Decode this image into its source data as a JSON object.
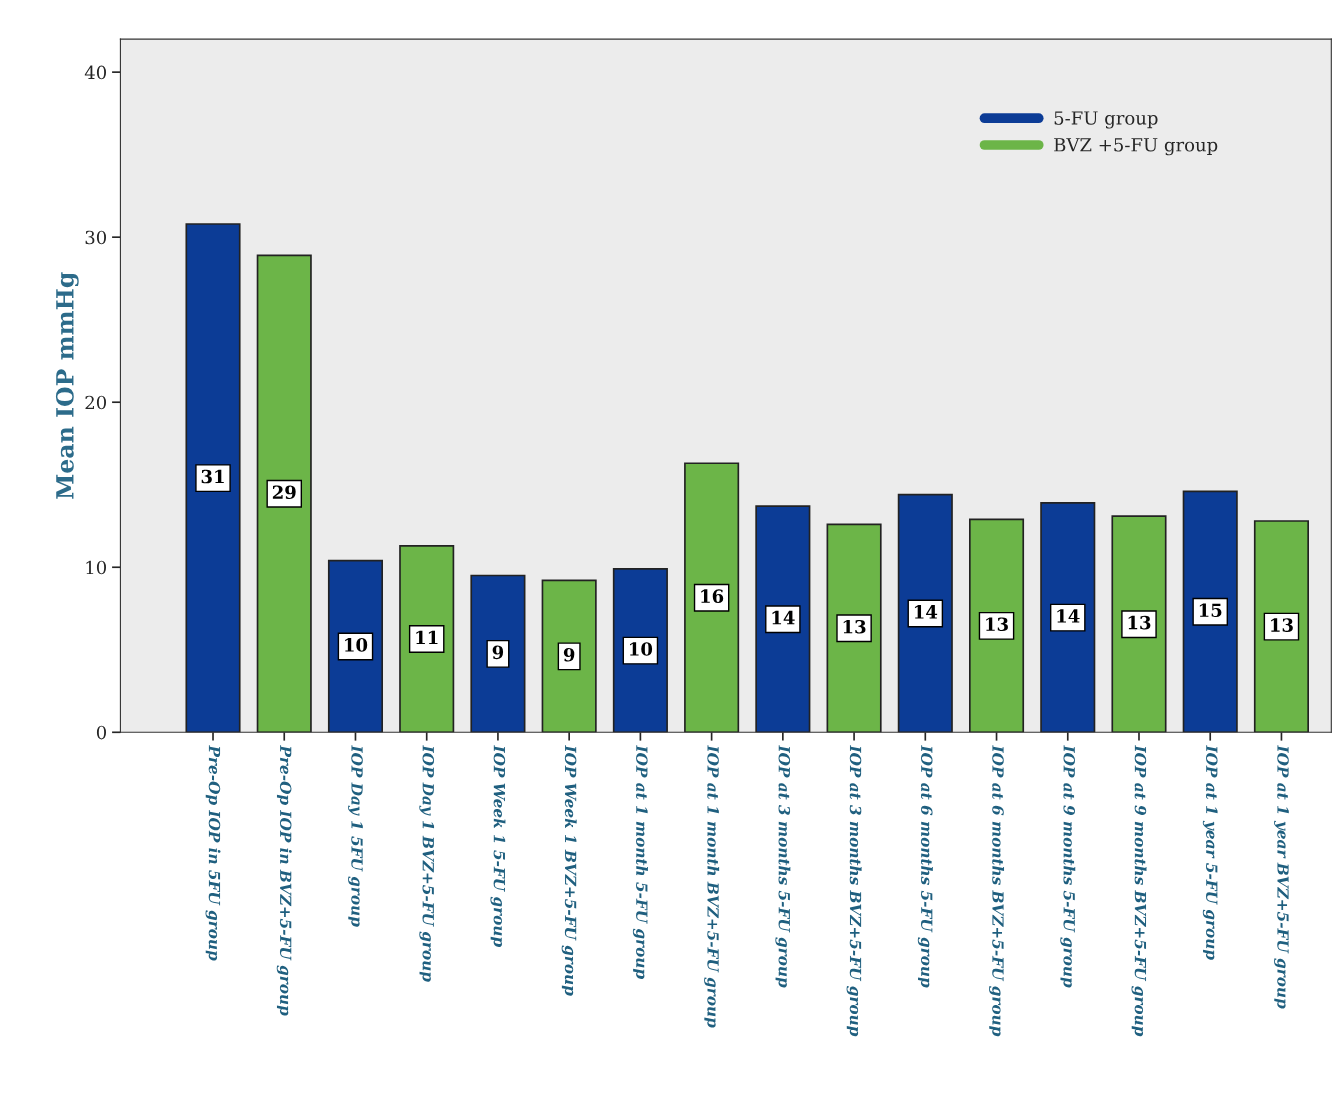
{
  "chart_data": {
    "type": "bar",
    "ylabel": "Mean IOP mmHg",
    "categories": [
      "Pre-Op IOP in 5FU group",
      "Pre-Op IOP in BVZ+5-FU group",
      "IOP Day 1 5FU group",
      "IOP Day 1 BVZ+5-FU group",
      "IOP Week 1 5-FU group",
      "IOP Week 1 BVZ+5-FU group",
      "IOP at 1 month 5-FU group",
      "IOP at 1 month BVZ+5-FU group",
      "IOP at 3 months 5-FU group",
      "IOP at 3 months BVZ+5-FU group",
      "IOP at 6 months 5-FU group",
      "IOP at 6 months BVZ+5-FU group",
      "IOP at 9 months 5-FU group",
      "IOP at 9 months BVZ+5-FU group",
      "IOP at 1 year 5-FU group",
      "IOP at 1 year BVZ+5-FU group"
    ],
    "series": [
      {
        "name": "5-FU group",
        "color": "#0c3c96",
        "values": [
          30.8,
          null,
          10.4,
          null,
          9.5,
          null,
          9.9,
          null,
          13.7,
          null,
          14.4,
          null,
          13.9,
          null,
          14.6,
          null
        ],
        "value_labels": [
          "31",
          null,
          "10",
          null,
          "9",
          null,
          "10",
          null,
          "14",
          null,
          "14",
          null,
          "14",
          null,
          "15",
          null
        ]
      },
      {
        "name": "BVZ +5-FU group",
        "color": "#6cb548",
        "values": [
          null,
          28.9,
          null,
          11.3,
          null,
          9.2,
          null,
          16.3,
          null,
          12.6,
          null,
          12.9,
          null,
          13.1,
          null,
          12.8
        ],
        "value_labels": [
          null,
          "29",
          null,
          "11",
          null,
          "9",
          null,
          "16",
          null,
          "13",
          null,
          "13",
          null,
          "13",
          null,
          "13"
        ]
      }
    ],
    "ylim": [
      0,
      42
    ],
    "yticks": [
      0,
      10,
      20,
      30,
      40
    ],
    "grid": false,
    "legend": "top right"
  }
}
